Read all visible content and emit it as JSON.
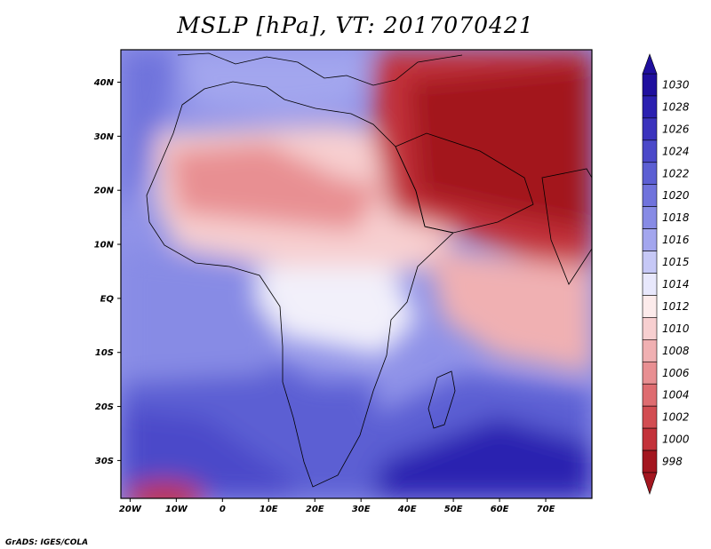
{
  "title": "MSLP [hPa],  VT: 2017070421",
  "credit": "GrADS: IGES/COLA",
  "map": {
    "variable": "MSLP",
    "units": "hPa",
    "valid_time": "2017070421",
    "lon_range": [
      -22,
      80
    ],
    "lat_range": [
      -37,
      46
    ],
    "x_ticks": [
      {
        "value": -20,
        "label": "20W"
      },
      {
        "value": -10,
        "label": "10W"
      },
      {
        "value": 0,
        "label": "0"
      },
      {
        "value": 10,
        "label": "10E"
      },
      {
        "value": 20,
        "label": "20E"
      },
      {
        "value": 30,
        "label": "30E"
      },
      {
        "value": 40,
        "label": "40E"
      },
      {
        "value": 50,
        "label": "50E"
      },
      {
        "value": 60,
        "label": "60E"
      },
      {
        "value": 70,
        "label": "70E"
      }
    ],
    "y_ticks": [
      {
        "value": 40,
        "label": "40N"
      },
      {
        "value": 30,
        "label": "30N"
      },
      {
        "value": 20,
        "label": "20N"
      },
      {
        "value": 10,
        "label": "10N"
      },
      {
        "value": 0,
        "label": "EQ"
      },
      {
        "value": -10,
        "label": "10S"
      },
      {
        "value": -20,
        "label": "20S"
      },
      {
        "value": -30,
        "label": "30S"
      }
    ]
  },
  "colorbar": {
    "levels": [
      {
        "label": "1030",
        "color": "#1f0f9e"
      },
      {
        "label": "1028",
        "color": "#2b20b0"
      },
      {
        "label": "1026",
        "color": "#3b33bd"
      },
      {
        "label": "1024",
        "color": "#4b49c9"
      },
      {
        "label": "1022",
        "color": "#5c5fd3"
      },
      {
        "label": "1020",
        "color": "#7073dc"
      },
      {
        "label": "1018",
        "color": "#878be5"
      },
      {
        "label": "1016",
        "color": "#a3a6ee"
      },
      {
        "label": "1015",
        "color": "#c6c8f6"
      },
      {
        "label": "1014",
        "color": "#e8e8fc"
      },
      {
        "label": "1012",
        "color": "#fcebeb"
      },
      {
        "label": "1010",
        "color": "#f7cfd0"
      },
      {
        "label": "1008",
        "color": "#f0b0b2"
      },
      {
        "label": "1006",
        "color": "#e88f92"
      },
      {
        "label": "1004",
        "color": "#de6c70"
      },
      {
        "label": "1002",
        "color": "#d24d52"
      },
      {
        "label": "1000",
        "color": "#c3323a"
      },
      {
        "label": "998",
        "color": "#a3161f"
      }
    ]
  },
  "field_colors": {
    "very_high": "#1f0f9e",
    "high": "#5c5fd3",
    "mid_high": "#a3a6ee",
    "neutral": "#f2f0fa",
    "mid_low": "#f7cfd0",
    "low": "#de6c70",
    "very_low": "#b51f28"
  }
}
